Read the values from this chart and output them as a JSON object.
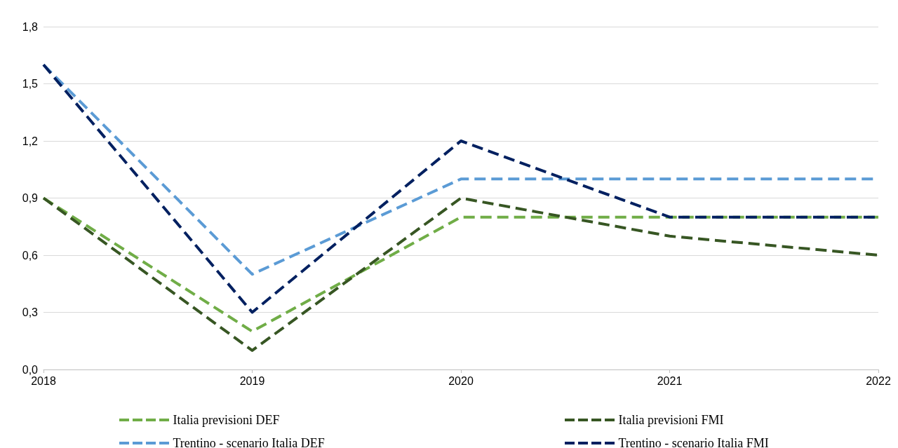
{
  "chart_data": {
    "type": "line",
    "categories": [
      "2018",
      "2019",
      "2020",
      "2021",
      "2022"
    ],
    "series": [
      {
        "name": "Italia previsioni DEF",
        "color": "#70ad47",
        "values": [
          0.9,
          0.2,
          0.8,
          0.8,
          0.8
        ]
      },
      {
        "name": "Italia previsioni FMI",
        "color": "#375623",
        "values": [
          0.9,
          0.1,
          0.9,
          0.7,
          0.6
        ]
      },
      {
        "name": "Trentino - scenario Italia DEF",
        "color": "#5b9bd5",
        "values": [
          1.6,
          0.5,
          1.0,
          1.0,
          1.0
        ]
      },
      {
        "name": "Trentino - scenario Italia FMI",
        "color": "#002060",
        "values": [
          1.6,
          0.3,
          1.2,
          0.8,
          0.8
        ]
      }
    ],
    "ylim": [
      0,
      1.8
    ],
    "yticks": [
      {
        "value": 0,
        "label": "0,0"
      },
      {
        "value": 0.3,
        "label": "0,3"
      },
      {
        "value": 0.6,
        "label": "0,6"
      },
      {
        "value": 0.9,
        "label": "0,9"
      },
      {
        "value": 1.2,
        "label": "1,2"
      },
      {
        "value": 1.5,
        "label": "1,5"
      },
      {
        "value": 1.8,
        "label": "1,8"
      }
    ],
    "grid": "y",
    "legend": "bottom",
    "marker": "none",
    "line_style": "dashed"
  }
}
